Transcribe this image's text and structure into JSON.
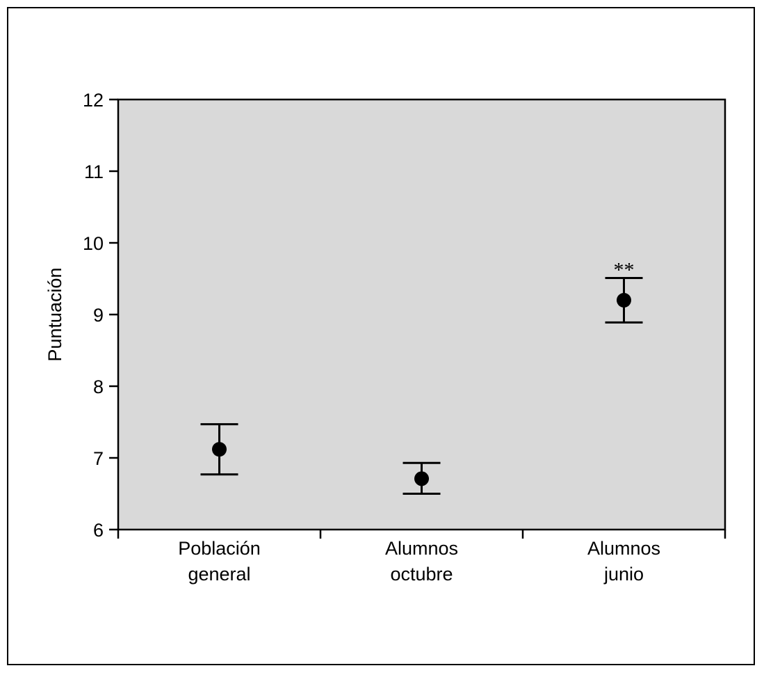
{
  "chart_data": {
    "type": "scatter",
    "title": "",
    "xlabel": "",
    "ylabel": "Puntuación",
    "ylim": [
      6,
      12
    ],
    "yticks": [
      6,
      7,
      8,
      9,
      10,
      11,
      12
    ],
    "categories": [
      {
        "lines": [
          "Población",
          "general"
        ]
      },
      {
        "lines": [
          "Alumnos",
          "octubre"
        ]
      },
      {
        "lines": [
          "Alumnos",
          "junio"
        ]
      }
    ],
    "series": [
      {
        "values": [
          7.12,
          6.71,
          9.2
        ],
        "error_low": [
          6.77,
          6.5,
          8.89
        ],
        "error_high": [
          7.47,
          6.93,
          9.51
        ]
      }
    ],
    "annotations": [
      {
        "category_index": 2,
        "text": "**"
      }
    ],
    "grid": false,
    "legend": "none",
    "colors": {
      "plot_background": "#d9d9d9",
      "marker": "#000000",
      "axis": "#000000"
    }
  }
}
